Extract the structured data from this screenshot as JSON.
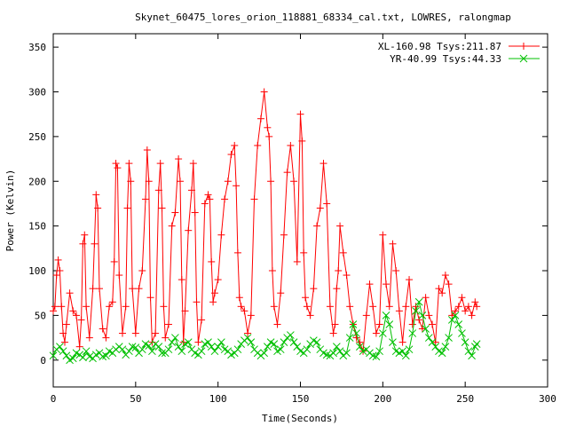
{
  "chart_data": {
    "type": "line",
    "title": "Skynet_60475_lores_orion_118881_68334_cal.txt, LOWRES, ralongmap",
    "xlabel": "Time(Seconds)",
    "ylabel": "Power (Kelvin)",
    "xlim": [
      0,
      300
    ],
    "ylim": [
      -30,
      365
    ],
    "xticks": [
      0,
      50,
      100,
      150,
      200,
      250,
      300
    ],
    "yticks": [
      0,
      50,
      100,
      150,
      200,
      250,
      300,
      350
    ],
    "grid": false,
    "legend_position": "top-right",
    "series": [
      {
        "name": "XL-160.98 Tsys:211.87",
        "color": "#ff0000",
        "marker": "plus",
        "x": [
          0,
          1,
          2,
          3,
          4,
          5,
          6,
          7,
          8,
          10,
          12,
          14,
          16,
          17,
          18,
          19,
          20,
          22,
          24,
          25,
          26,
          27,
          28,
          30,
          32,
          34,
          36,
          37,
          38,
          39,
          40,
          42,
          44,
          45,
          46,
          47,
          48,
          50,
          52,
          54,
          56,
          57,
          58,
          59,
          60,
          62,
          64,
          65,
          66,
          67,
          68,
          70,
          72,
          74,
          76,
          77,
          78,
          79,
          80,
          82,
          84,
          85,
          86,
          87,
          88,
          90,
          92,
          94,
          95,
          96,
          97,
          98,
          100,
          102,
          104,
          106,
          108,
          110,
          111,
          112,
          113,
          114,
          116,
          118,
          120,
          122,
          124,
          126,
          128,
          130,
          131,
          132,
          133,
          134,
          136,
          138,
          140,
          142,
          144,
          146,
          148,
          150,
          151,
          152,
          153,
          154,
          156,
          158,
          160,
          162,
          164,
          166,
          168,
          170,
          171,
          172,
          173,
          174,
          176,
          178,
          180,
          182,
          184,
          186,
          188,
          190,
          192,
          194,
          196,
          198,
          200,
          202,
          204,
          206,
          208,
          210,
          212,
          214,
          216,
          218,
          220,
          222,
          224,
          226,
          228,
          230,
          232,
          234,
          236,
          238,
          240,
          242,
          244,
          246,
          248,
          250,
          252,
          254,
          256,
          257
        ],
        "values": [
          55,
          60,
          95,
          112,
          100,
          60,
          30,
          20,
          40,
          75,
          55,
          50,
          15,
          45,
          130,
          140,
          60,
          25,
          80,
          130,
          185,
          170,
          80,
          35,
          25,
          60,
          65,
          110,
          220,
          215,
          95,
          30,
          60,
          170,
          220,
          200,
          80,
          30,
          80,
          100,
          180,
          235,
          200,
          70,
          20,
          30,
          190,
          220,
          170,
          60,
          25,
          40,
          150,
          165,
          225,
          200,
          90,
          20,
          55,
          145,
          190,
          220,
          165,
          65,
          20,
          45,
          175,
          185,
          180,
          110,
          65,
          75,
          90,
          140,
          180,
          200,
          230,
          240,
          195,
          120,
          70,
          60,
          55,
          30,
          50,
          180,
          240,
          270,
          300,
          260,
          250,
          200,
          100,
          60,
          40,
          75,
          140,
          210,
          240,
          200,
          110,
          275,
          245,
          120,
          70,
          60,
          50,
          80,
          150,
          170,
          220,
          175,
          60,
          30,
          40,
          80,
          100,
          150,
          120,
          95,
          60,
          40,
          25,
          20,
          10,
          50,
          85,
          60,
          30,
          40,
          140,
          85,
          60,
          130,
          100,
          55,
          20,
          60,
          90,
          40,
          60,
          45,
          35,
          70,
          50,
          40,
          20,
          80,
          75,
          95,
          85,
          50,
          55,
          60,
          70,
          55,
          60,
          50,
          65,
          60
        ]
      },
      {
        "name": "YR-40.99 Tsys:44.33",
        "color": "#00c000",
        "marker": "x",
        "x": [
          0,
          2,
          4,
          6,
          8,
          10,
          12,
          14,
          16,
          18,
          20,
          22,
          24,
          26,
          28,
          30,
          32,
          34,
          36,
          38,
          40,
          42,
          44,
          46,
          48,
          50,
          52,
          54,
          56,
          58,
          60,
          62,
          64,
          66,
          68,
          70,
          72,
          74,
          76,
          78,
          80,
          82,
          84,
          86,
          88,
          90,
          92,
          94,
          96,
          98,
          100,
          102,
          104,
          106,
          108,
          110,
          112,
          114,
          116,
          118,
          120,
          122,
          124,
          126,
          128,
          130,
          132,
          134,
          136,
          138,
          140,
          142,
          144,
          146,
          148,
          150,
          152,
          154,
          156,
          158,
          160,
          162,
          164,
          166,
          168,
          170,
          172,
          174,
          176,
          178,
          180,
          182,
          184,
          186,
          188,
          190,
          192,
          194,
          196,
          198,
          200,
          202,
          204,
          206,
          208,
          210,
          212,
          214,
          216,
          218,
          220,
          222,
          224,
          226,
          228,
          230,
          232,
          234,
          236,
          238,
          240,
          242,
          244,
          246,
          248,
          250,
          252,
          254,
          256,
          257
        ],
        "values": [
          5,
          12,
          15,
          10,
          5,
          0,
          2,
          8,
          6,
          3,
          10,
          4,
          2,
          6,
          8,
          4,
          5,
          10,
          8,
          12,
          15,
          12,
          6,
          10,
          15,
          14,
          8,
          12,
          18,
          16,
          10,
          18,
          15,
          8,
          8,
          12,
          20,
          25,
          15,
          10,
          18,
          20,
          12,
          8,
          6,
          10,
          18,
          20,
          15,
          10,
          15,
          20,
          12,
          10,
          6,
          8,
          12,
          18,
          22,
          25,
          20,
          12,
          8,
          5,
          8,
          15,
          20,
          18,
          10,
          12,
          20,
          25,
          28,
          20,
          15,
          10,
          8,
          12,
          18,
          22,
          20,
          12,
          8,
          6,
          5,
          8,
          15,
          10,
          5,
          8,
          25,
          40,
          30,
          15,
          10,
          12,
          8,
          5,
          4,
          10,
          30,
          50,
          40,
          20,
          10,
          8,
          10,
          5,
          12,
          30,
          55,
          65,
          50,
          35,
          25,
          20,
          15,
          10,
          8,
          15,
          25,
          45,
          50,
          40,
          30,
          20,
          10,
          5,
          15,
          18
        ]
      }
    ]
  }
}
